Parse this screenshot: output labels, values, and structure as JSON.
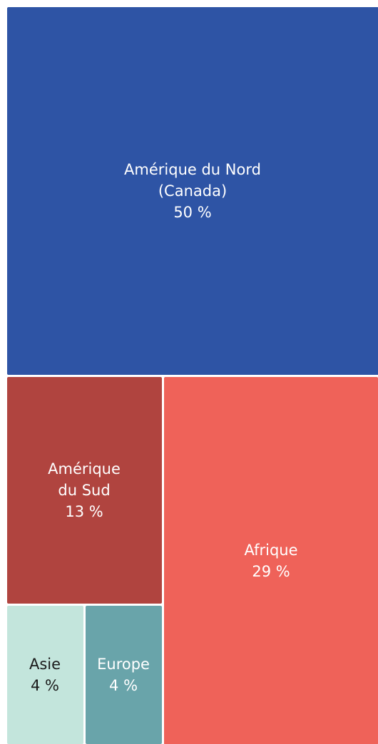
{
  "chart_data": {
    "type": "treemap",
    "categories": [
      "Amérique du Nord\n(Canada)",
      "Afrique",
      "Amérique\ndu Sud",
      "Europe",
      "Asie"
    ],
    "values": [
      50,
      29,
      13,
      4,
      4
    ],
    "value_labels": [
      "50 %",
      "29 %",
      "13 %",
      "4 %",
      "4 %"
    ],
    "colors": [
      "#2e54a5",
      "#ef6259",
      "#b0443f",
      "#69a4aa",
      "#c3e5dc"
    ]
  }
}
